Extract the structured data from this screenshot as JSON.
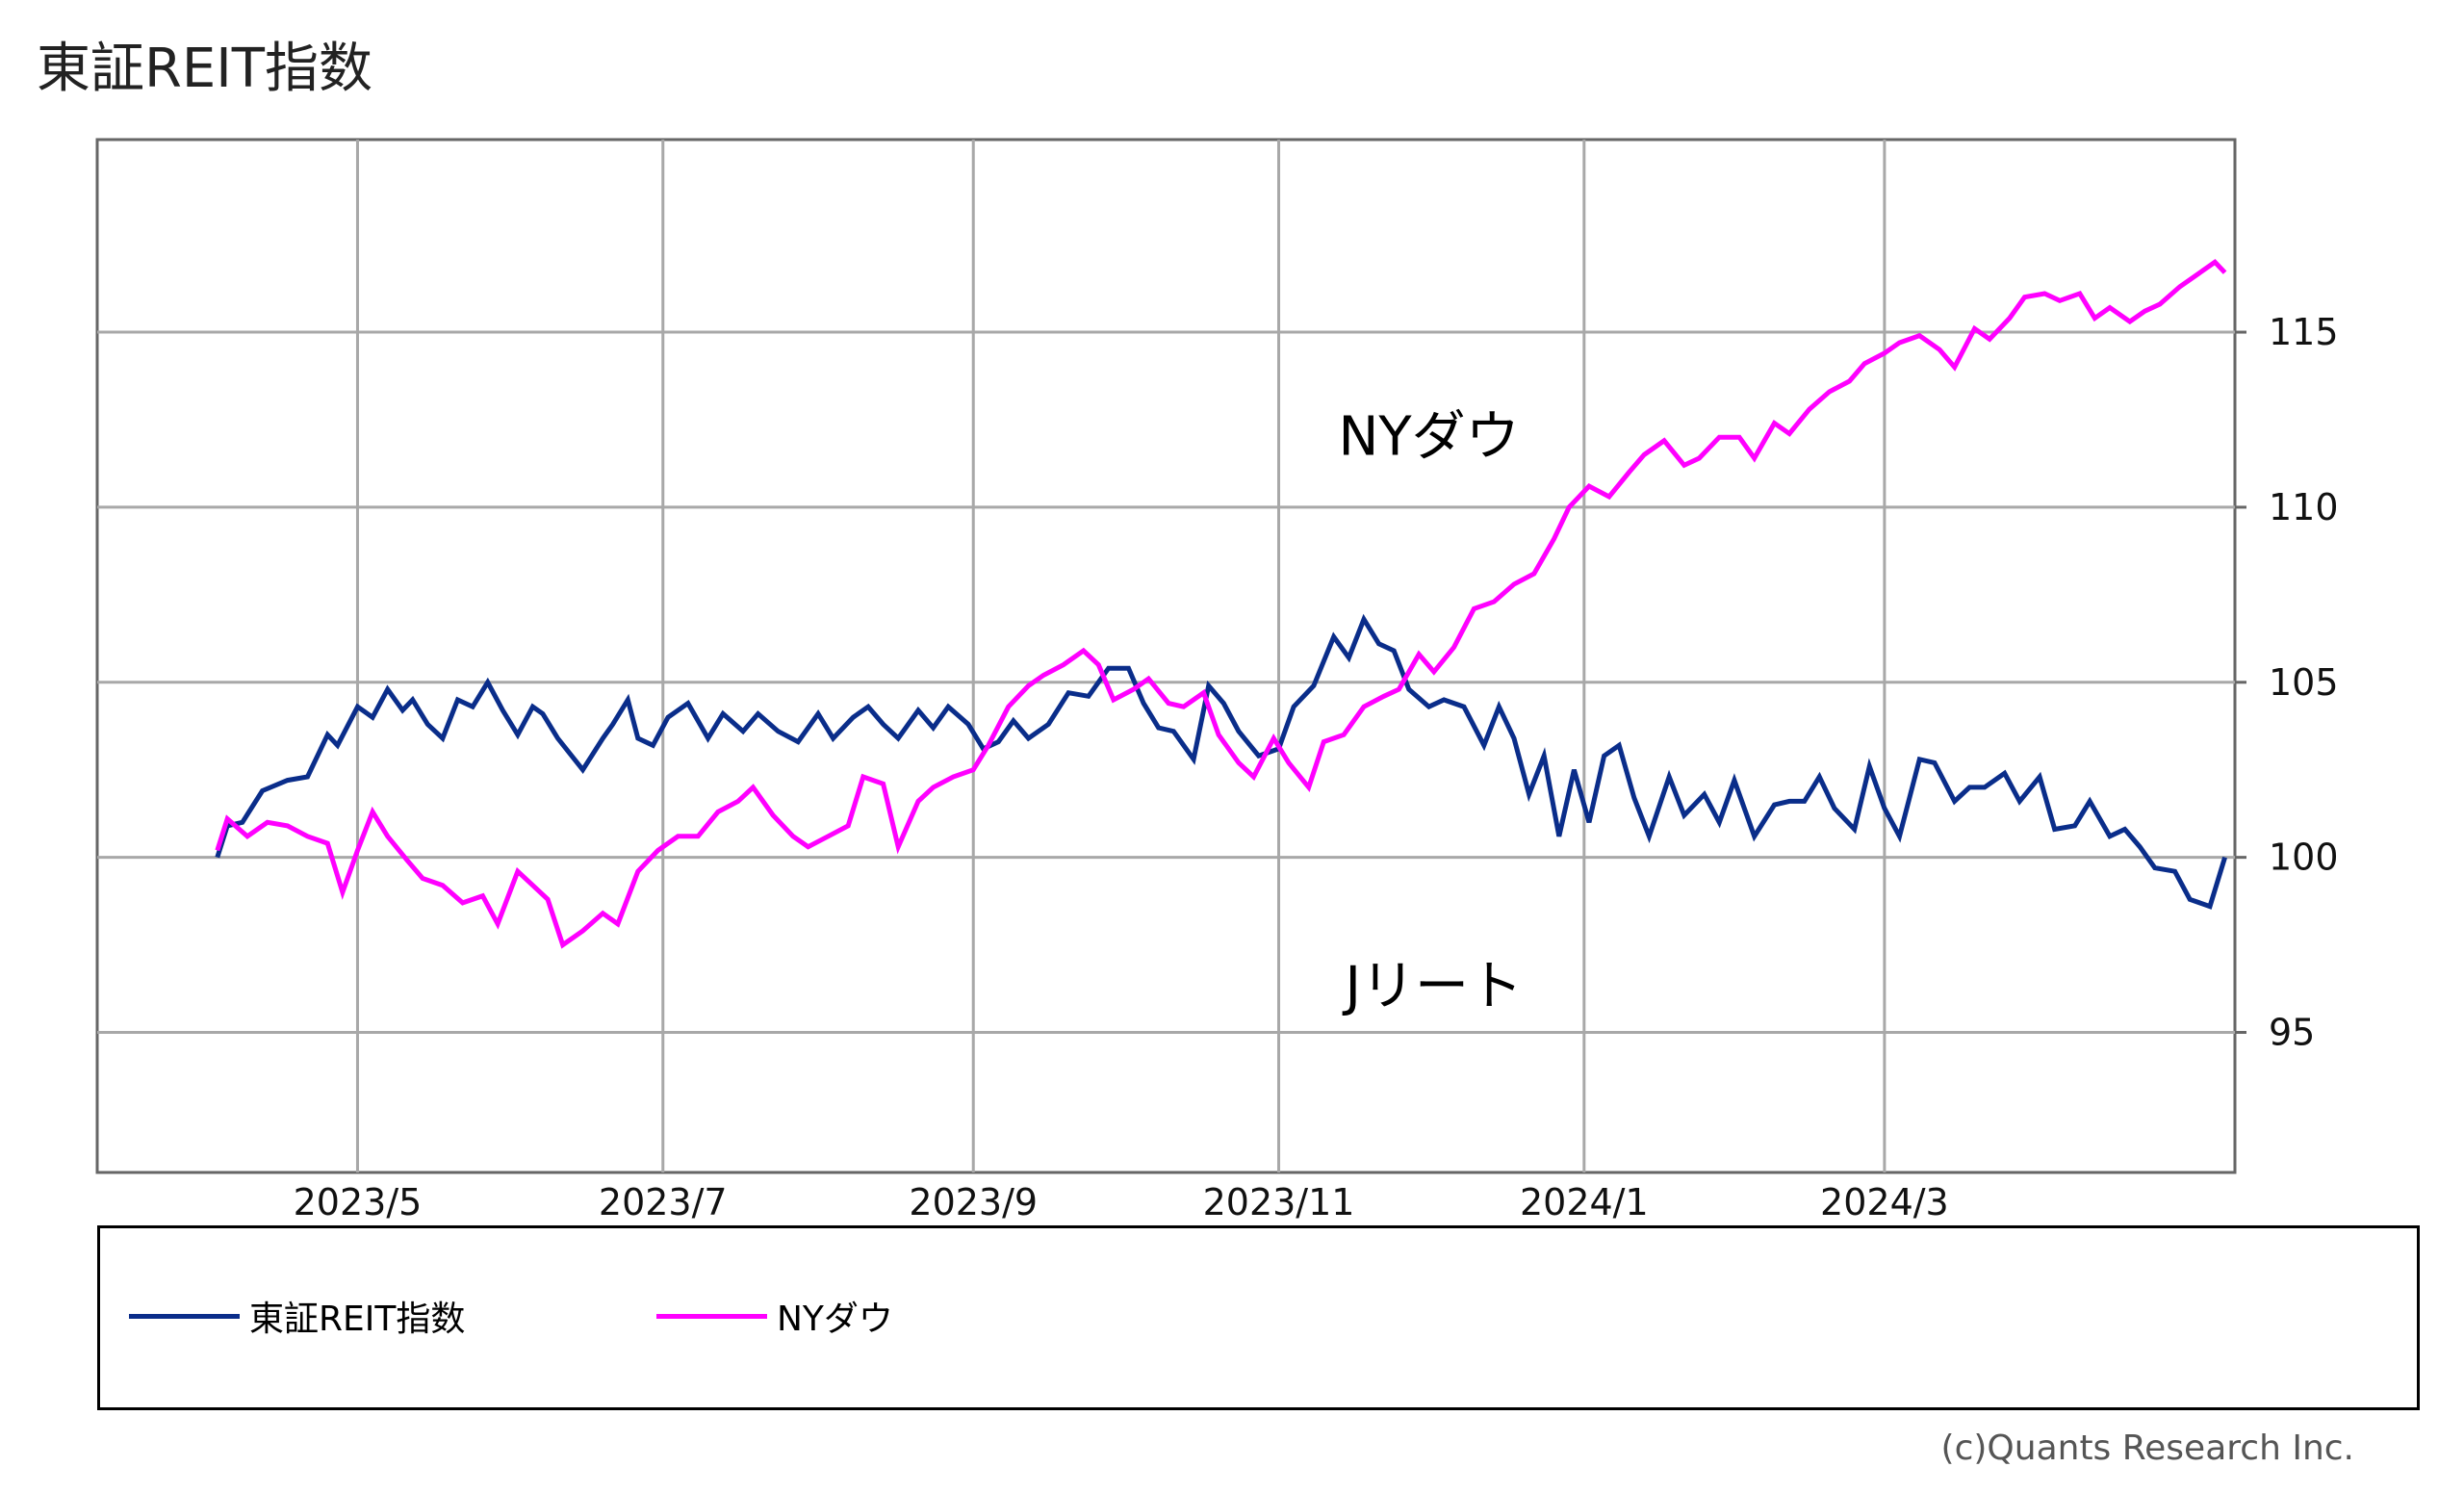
{
  "chart_data": {
    "type": "line",
    "title": "東証REIT指数",
    "x_tick_labels": [
      "2023/5",
      "2023/7",
      "2023/9",
      "2023/11",
      "2024/1",
      "2024/3"
    ],
    "y_tick_labels": [
      "95",
      "100",
      "105",
      "110",
      "115"
    ],
    "ylim": [
      91,
      120.5
    ],
    "xlim": [
      "2023-03-10",
      "2024-05-10"
    ],
    "grid": true,
    "y_axis_side": "right",
    "legend_position": "bottom",
    "annotations": [
      {
        "text": "NYダウ",
        "x": "2023-12-01",
        "y": 111.5
      },
      {
        "text": "Jリート",
        "x": "2023-12-02",
        "y": 95.8
      }
    ],
    "series": [
      {
        "name": "東証REIT指数",
        "color": "#0a2d8a",
        "points": [
          [
            "2023-04-03",
            100.0
          ],
          [
            "2023-04-05",
            100.9
          ],
          [
            "2023-04-08",
            101.0
          ],
          [
            "2023-04-12",
            101.9
          ],
          [
            "2023-04-17",
            102.2
          ],
          [
            "2023-04-21",
            102.3
          ],
          [
            "2023-04-25",
            103.5
          ],
          [
            "2023-04-27",
            103.2
          ],
          [
            "2023-05-01",
            104.3
          ],
          [
            "2023-05-04",
            104.0
          ],
          [
            "2023-05-07",
            104.8
          ],
          [
            "2023-05-10",
            104.2
          ],
          [
            "2023-05-12",
            104.5
          ],
          [
            "2023-05-15",
            103.8
          ],
          [
            "2023-05-18",
            103.4
          ],
          [
            "2023-05-21",
            104.5
          ],
          [
            "2023-05-24",
            104.3
          ],
          [
            "2023-05-27",
            105.0
          ],
          [
            "2023-05-30",
            104.2
          ],
          [
            "2023-06-02",
            103.5
          ],
          [
            "2023-06-05",
            104.3
          ],
          [
            "2023-06-07",
            104.1
          ],
          [
            "2023-06-10",
            103.4
          ],
          [
            "2023-06-15",
            102.5
          ],
          [
            "2023-06-19",
            103.4
          ],
          [
            "2023-06-21",
            103.8
          ],
          [
            "2023-06-24",
            104.5
          ],
          [
            "2023-06-26",
            103.4
          ],
          [
            "2023-06-29",
            103.2
          ],
          [
            "2023-07-02",
            104.0
          ],
          [
            "2023-07-06",
            104.4
          ],
          [
            "2023-07-10",
            103.4
          ],
          [
            "2023-07-13",
            104.1
          ],
          [
            "2023-07-17",
            103.6
          ],
          [
            "2023-07-20",
            104.1
          ],
          [
            "2023-07-24",
            103.6
          ],
          [
            "2023-07-28",
            103.3
          ],
          [
            "2023-08-01",
            104.1
          ],
          [
            "2023-08-04",
            103.4
          ],
          [
            "2023-08-08",
            104.0
          ],
          [
            "2023-08-11",
            104.3
          ],
          [
            "2023-08-14",
            103.8
          ],
          [
            "2023-08-17",
            103.4
          ],
          [
            "2023-08-21",
            104.2
          ],
          [
            "2023-08-24",
            103.7
          ],
          [
            "2023-08-27",
            104.3
          ],
          [
            "2023-08-31",
            103.8
          ],
          [
            "2023-09-03",
            103.1
          ],
          [
            "2023-09-06",
            103.3
          ],
          [
            "2023-09-09",
            103.9
          ],
          [
            "2023-09-12",
            103.4
          ],
          [
            "2023-09-16",
            103.8
          ],
          [
            "2023-09-20",
            104.7
          ],
          [
            "2023-09-24",
            104.6
          ],
          [
            "2023-09-28",
            105.4
          ],
          [
            "2023-10-02",
            105.4
          ],
          [
            "2023-10-05",
            104.4
          ],
          [
            "2023-10-08",
            103.7
          ],
          [
            "2023-10-11",
            103.6
          ],
          [
            "2023-10-15",
            102.8
          ],
          [
            "2023-10-18",
            104.9
          ],
          [
            "2023-10-21",
            104.4
          ],
          [
            "2023-10-24",
            103.6
          ],
          [
            "2023-10-28",
            102.9
          ],
          [
            "2023-11-01",
            103.1
          ],
          [
            "2023-11-04",
            104.3
          ],
          [
            "2023-11-08",
            104.9
          ],
          [
            "2023-11-12",
            106.3
          ],
          [
            "2023-11-15",
            105.7
          ],
          [
            "2023-11-18",
            106.8
          ],
          [
            "2023-11-21",
            106.1
          ],
          [
            "2023-11-24",
            105.9
          ],
          [
            "2023-11-27",
            104.8
          ],
          [
            "2023-12-01",
            104.3
          ],
          [
            "2023-12-04",
            104.5
          ],
          [
            "2023-12-08",
            104.3
          ],
          [
            "2023-12-12",
            103.2
          ],
          [
            "2023-12-15",
            104.3
          ],
          [
            "2023-12-18",
            103.4
          ],
          [
            "2023-12-21",
            101.8
          ],
          [
            "2023-12-24",
            102.9
          ],
          [
            "2023-12-27",
            100.6
          ],
          [
            "2023-12-30",
            102.5
          ],
          [
            "2024-01-02",
            101.0
          ],
          [
            "2024-01-05",
            102.9
          ],
          [
            "2024-01-08",
            103.2
          ],
          [
            "2024-01-11",
            101.7
          ],
          [
            "2024-01-14",
            100.6
          ],
          [
            "2024-01-18",
            102.3
          ],
          [
            "2024-01-21",
            101.2
          ],
          [
            "2024-01-25",
            101.8
          ],
          [
            "2024-01-28",
            101.0
          ],
          [
            "2024-01-31",
            102.2
          ],
          [
            "2024-02-04",
            100.6
          ],
          [
            "2024-02-08",
            101.5
          ],
          [
            "2024-02-11",
            101.6
          ],
          [
            "2024-02-14",
            101.6
          ],
          [
            "2024-02-17",
            102.3
          ],
          [
            "2024-02-20",
            101.4
          ],
          [
            "2024-02-24",
            100.8
          ],
          [
            "2024-02-27",
            102.6
          ],
          [
            "2024-03-01",
            101.4
          ],
          [
            "2024-03-04",
            100.6
          ],
          [
            "2024-03-08",
            102.8
          ],
          [
            "2024-03-11",
            102.7
          ],
          [
            "2024-03-15",
            101.6
          ],
          [
            "2024-03-18",
            102.0
          ],
          [
            "2024-03-21",
            102.0
          ],
          [
            "2024-03-25",
            102.4
          ],
          [
            "2024-03-28",
            101.6
          ],
          [
            "2024-04-01",
            102.3
          ],
          [
            "2024-04-04",
            100.8
          ],
          [
            "2024-04-08",
            100.9
          ],
          [
            "2024-04-11",
            101.6
          ],
          [
            "2024-04-15",
            100.6
          ],
          [
            "2024-04-18",
            100.8
          ],
          [
            "2024-04-21",
            100.3
          ],
          [
            "2024-04-24",
            99.7
          ],
          [
            "2024-04-28",
            99.6
          ],
          [
            "2024-05-01",
            98.8
          ],
          [
            "2024-05-05",
            98.6
          ],
          [
            "2024-05-08",
            100.0
          ]
        ]
      },
      {
        "name": "NYダウ",
        "color": "#ff00ff",
        "points": [
          [
            "2023-04-03",
            100.2
          ],
          [
            "2023-04-05",
            101.1
          ],
          [
            "2023-04-09",
            100.6
          ],
          [
            "2023-04-13",
            101.0
          ],
          [
            "2023-04-17",
            100.9
          ],
          [
            "2023-04-21",
            100.6
          ],
          [
            "2023-04-25",
            100.4
          ],
          [
            "2023-04-28",
            99.0
          ],
          [
            "2023-05-01",
            100.2
          ],
          [
            "2023-05-04",
            101.3
          ],
          [
            "2023-05-07",
            100.6
          ],
          [
            "2023-05-11",
            99.9
          ],
          [
            "2023-05-14",
            99.4
          ],
          [
            "2023-05-18",
            99.2
          ],
          [
            "2023-05-22",
            98.7
          ],
          [
            "2023-05-26",
            98.9
          ],
          [
            "2023-05-29",
            98.1
          ],
          [
            "2023-06-02",
            99.6
          ],
          [
            "2023-06-05",
            99.2
          ],
          [
            "2023-06-08",
            98.8
          ],
          [
            "2023-06-11",
            97.5
          ],
          [
            "2023-06-15",
            97.9
          ],
          [
            "2023-06-19",
            98.4
          ],
          [
            "2023-06-22",
            98.1
          ],
          [
            "2023-06-26",
            99.6
          ],
          [
            "2023-06-30",
            100.2
          ],
          [
            "2023-07-04",
            100.6
          ],
          [
            "2023-07-08",
            100.6
          ],
          [
            "2023-07-12",
            101.3
          ],
          [
            "2023-07-16",
            101.6
          ],
          [
            "2023-07-19",
            102.0
          ],
          [
            "2023-07-23",
            101.2
          ],
          [
            "2023-07-27",
            100.6
          ],
          [
            "2023-07-30",
            100.3
          ],
          [
            "2023-08-03",
            100.6
          ],
          [
            "2023-08-07",
            100.9
          ],
          [
            "2023-08-10",
            102.3
          ],
          [
            "2023-08-14",
            102.1
          ],
          [
            "2023-08-17",
            100.3
          ],
          [
            "2023-08-21",
            101.6
          ],
          [
            "2023-08-24",
            102.0
          ],
          [
            "2023-08-28",
            102.3
          ],
          [
            "2023-09-01",
            102.5
          ],
          [
            "2023-09-04",
            103.2
          ],
          [
            "2023-09-08",
            104.3
          ],
          [
            "2023-09-12",
            104.9
          ],
          [
            "2023-09-15",
            105.2
          ],
          [
            "2023-09-19",
            105.5
          ],
          [
            "2023-09-23",
            105.9
          ],
          [
            "2023-09-26",
            105.5
          ],
          [
            "2023-09-29",
            104.5
          ],
          [
            "2023-10-03",
            104.8
          ],
          [
            "2023-10-06",
            105.1
          ],
          [
            "2023-10-10",
            104.4
          ],
          [
            "2023-10-13",
            104.3
          ],
          [
            "2023-10-17",
            104.7
          ],
          [
            "2023-10-20",
            103.5
          ],
          [
            "2023-10-24",
            102.7
          ],
          [
            "2023-10-27",
            102.3
          ],
          [
            "2023-10-31",
            103.4
          ],
          [
            "2023-11-03",
            102.7
          ],
          [
            "2023-11-07",
            102.0
          ],
          [
            "2023-11-10",
            103.3
          ],
          [
            "2023-11-14",
            103.5
          ],
          [
            "2023-11-18",
            104.3
          ],
          [
            "2023-11-22",
            104.6
          ],
          [
            "2023-11-25",
            104.8
          ],
          [
            "2023-11-29",
            105.8
          ],
          [
            "2023-12-02",
            105.3
          ],
          [
            "2023-12-06",
            106.0
          ],
          [
            "2023-12-10",
            107.1
          ],
          [
            "2023-12-14",
            107.3
          ],
          [
            "2023-12-18",
            107.8
          ],
          [
            "2023-12-22",
            108.1
          ],
          [
            "2023-12-26",
            109.1
          ],
          [
            "2023-12-29",
            110.0
          ],
          [
            "2024-01-02",
            110.6
          ],
          [
            "2024-01-06",
            110.3
          ],
          [
            "2024-01-10",
            111.0
          ],
          [
            "2024-01-13",
            111.5
          ],
          [
            "2024-01-17",
            111.9
          ],
          [
            "2024-01-21",
            111.2
          ],
          [
            "2024-01-24",
            111.4
          ],
          [
            "2024-01-28",
            112.0
          ],
          [
            "2024-02-01",
            112.0
          ],
          [
            "2024-02-04",
            111.4
          ],
          [
            "2024-02-08",
            112.4
          ],
          [
            "2024-02-11",
            112.1
          ],
          [
            "2024-02-15",
            112.8
          ],
          [
            "2024-02-19",
            113.3
          ],
          [
            "2024-02-23",
            113.6
          ],
          [
            "2024-02-26",
            114.1
          ],
          [
            "2024-03-01",
            114.4
          ],
          [
            "2024-03-04",
            114.7
          ],
          [
            "2024-03-08",
            114.9
          ],
          [
            "2024-03-12",
            114.5
          ],
          [
            "2024-03-15",
            114.0
          ],
          [
            "2024-03-19",
            115.1
          ],
          [
            "2024-03-22",
            114.8
          ],
          [
            "2024-03-26",
            115.4
          ],
          [
            "2024-03-29",
            116.0
          ],
          [
            "2024-04-02",
            116.1
          ],
          [
            "2024-04-05",
            115.9
          ],
          [
            "2024-04-09",
            116.1
          ],
          [
            "2024-04-12",
            115.4
          ],
          [
            "2024-04-15",
            115.7
          ],
          [
            "2024-04-19",
            115.3
          ],
          [
            "2024-04-22",
            115.6
          ],
          [
            "2024-04-25",
            115.8
          ],
          [
            "2024-04-29",
            116.3
          ],
          [
            "2024-05-02",
            116.6
          ],
          [
            "2024-05-06",
            117.0
          ],
          [
            "2024-05-08",
            116.7
          ]
        ]
      }
    ]
  },
  "copyright": "(c)Quants Research Inc."
}
